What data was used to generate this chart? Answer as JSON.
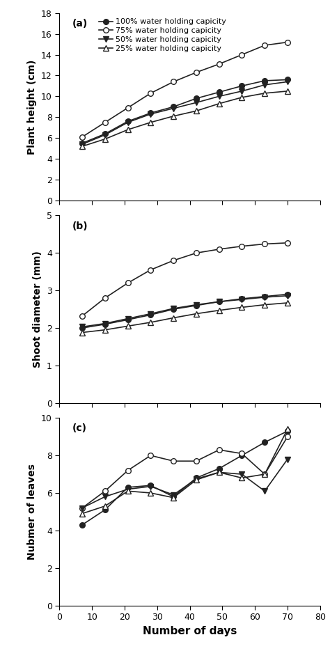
{
  "days": [
    7,
    14,
    21,
    28,
    35,
    42,
    49,
    56,
    63,
    70
  ],
  "panel_a": {
    "ylabel": "Plant height (cm)",
    "ylim": [
      0,
      18
    ],
    "yticks": [
      0,
      2,
      4,
      6,
      8,
      10,
      12,
      14,
      16,
      18
    ],
    "label": "(a)",
    "series": {
      "whc100": [
        5.5,
        6.4,
        7.6,
        8.4,
        9.0,
        9.8,
        10.4,
        11.0,
        11.5,
        11.6
      ],
      "whc75": [
        6.1,
        7.5,
        8.9,
        10.3,
        11.4,
        12.3,
        13.1,
        14.0,
        14.9,
        15.2
      ],
      "whc50": [
        5.4,
        6.3,
        7.5,
        8.3,
        8.85,
        9.4,
        10.0,
        10.5,
        11.1,
        11.4
      ],
      "whc25": [
        5.2,
        5.9,
        6.8,
        7.5,
        8.1,
        8.6,
        9.3,
        9.9,
        10.3,
        10.5
      ]
    }
  },
  "panel_b": {
    "ylabel": "Shoot diameter (mm)",
    "ylim": [
      0,
      5
    ],
    "yticks": [
      0,
      1,
      2,
      3,
      4,
      5
    ],
    "label": "(b)",
    "series": {
      "whc100": [
        2.0,
        2.1,
        2.22,
        2.35,
        2.5,
        2.6,
        2.7,
        2.78,
        2.84,
        2.9
      ],
      "whc75": [
        2.32,
        2.8,
        3.2,
        3.55,
        3.8,
        4.0,
        4.1,
        4.18,
        4.24,
        4.27
      ],
      "whc50": [
        2.03,
        2.12,
        2.25,
        2.38,
        2.52,
        2.62,
        2.7,
        2.76,
        2.82,
        2.86
      ],
      "whc25": [
        1.88,
        1.95,
        2.05,
        2.15,
        2.27,
        2.38,
        2.47,
        2.55,
        2.62,
        2.67
      ]
    }
  },
  "panel_c": {
    "ylabel": "Nubmer of leaves",
    "ylim": [
      0,
      10
    ],
    "yticks": [
      0,
      2,
      4,
      6,
      8,
      10
    ],
    "label": "(c)",
    "series": {
      "whc100": [
        4.3,
        5.1,
        6.3,
        6.4,
        5.8,
        6.8,
        7.3,
        8.0,
        8.7,
        9.3
      ],
      "whc75": [
        5.2,
        6.1,
        7.2,
        8.0,
        7.7,
        7.7,
        8.3,
        8.1,
        7.0,
        9.0
      ],
      "whc50": [
        5.2,
        5.8,
        6.2,
        6.35,
        5.9,
        6.75,
        7.1,
        7.0,
        6.1,
        7.8
      ],
      "whc25": [
        4.9,
        5.3,
        6.1,
        6.0,
        5.75,
        6.7,
        7.1,
        6.8,
        7.0,
        9.4
      ]
    }
  },
  "xlim": [
    0,
    80
  ],
  "xticks": [
    0,
    10,
    20,
    30,
    40,
    50,
    60,
    70,
    80
  ],
  "xlabel": "Number of days",
  "legend_labels": [
    "100% water holding capicity",
    "75% water holding capicity",
    "50% water holding capicity",
    "25% water holding capicity"
  ],
  "line_color": "#222222",
  "marker_styles": [
    "o",
    "o",
    "v",
    "^"
  ],
  "marker_filled": [
    true,
    false,
    true,
    false
  ],
  "markersize": 5.5,
  "linewidth": 1.2,
  "fontsize_label": 10,
  "fontsize_tick": 9,
  "fontsize_legend": 8,
  "fontsize_panel": 10
}
